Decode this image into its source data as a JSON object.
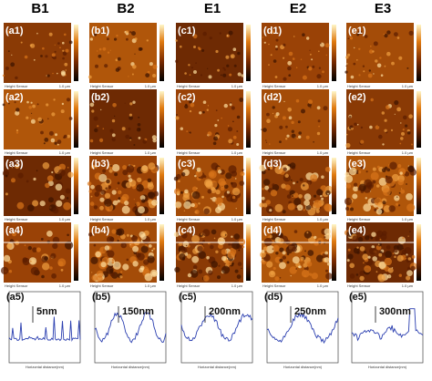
{
  "headers": [
    "B1",
    "B2",
    "E1",
    "E2",
    "E3"
  ],
  "panels": [
    [
      "(a1)",
      "(b1)",
      "(c1)",
      "(d1)",
      "(e1)"
    ],
    [
      "(a2)",
      "(b2)",
      "(c2)",
      "(d2)",
      "(e2)"
    ],
    [
      "(a3)",
      "(b3)",
      "(c3)",
      "(d3)",
      "(e3)"
    ],
    [
      "(a4)",
      "(b4)",
      "(c4)",
      "(d4)",
      "(e4)"
    ]
  ],
  "profiles": [
    {
      "label": "(a5)",
      "annotation": "5nm"
    },
    {
      "label": "(b5)",
      "annotation": "150nm"
    },
    {
      "label": "(c5)",
      "annotation": "200nm"
    },
    {
      "label": "(d5)",
      "annotation": "250nm"
    },
    {
      "label": "(e5)",
      "annotation": "300nm"
    }
  ],
  "sensor": "Height Sensor",
  "scale": "1.0 µm",
  "x_axis": "Horizontal distance(nm)"
}
